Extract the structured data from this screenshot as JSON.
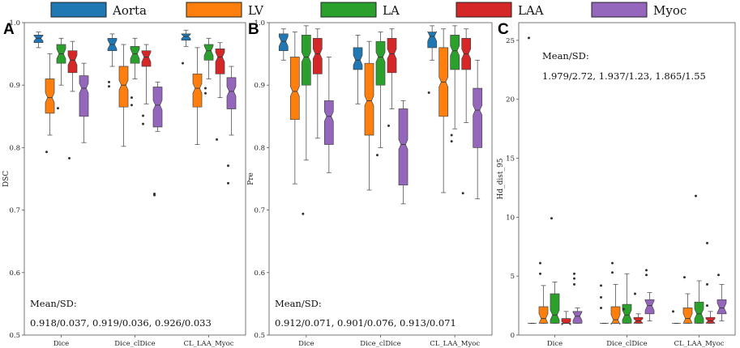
{
  "legend": [
    {
      "name": "Aorta",
      "color": "#1f77b4"
    },
    {
      "name": "LV",
      "color": "#ff7f0e"
    },
    {
      "name": "LA",
      "color": "#2ca02c"
    },
    {
      "name": "LAA",
      "color": "#d62728"
    },
    {
      "name": "Myoc",
      "color": "#9467bd"
    }
  ],
  "chart_data": [
    {
      "panel": "A",
      "type": "box",
      "ylabel": "DSC",
      "ylim": [
        0.5,
        1.0
      ],
      "yticks": [
        0.5,
        0.6,
        0.7,
        0.8,
        0.9,
        1.0
      ],
      "ytick_labels": [
        "0.5",
        "0.6",
        "0.7",
        "0.8",
        "0.9",
        "1.0"
      ],
      "categories": [
        "Dice",
        "Dice_clDice",
        "CL_LAA_Myoc"
      ],
      "annotation_title": "Mean/SD:",
      "annotation_text": "0.918/0.037, 0.919/0.036, 0.926/0.033",
      "groups": [
        [
          {
            "series": "Aorta",
            "q1": 0.968,
            "median": 0.975,
            "q3": 0.98,
            "wlo": 0.96,
            "whi": 0.985,
            "outliers": []
          },
          {
            "series": "LV",
            "q1": 0.855,
            "median": 0.88,
            "q3": 0.91,
            "wlo": 0.82,
            "whi": 0.95,
            "outliers": [
              0.793
            ]
          },
          {
            "series": "LA",
            "q1": 0.935,
            "median": 0.95,
            "q3": 0.965,
            "wlo": 0.9,
            "whi": 0.975,
            "outliers": [
              0.863
            ]
          },
          {
            "series": "LAA",
            "q1": 0.92,
            "median": 0.94,
            "q3": 0.955,
            "wlo": 0.89,
            "whi": 0.97,
            "outliers": [
              0.783
            ]
          },
          {
            "series": "Myoc",
            "q1": 0.85,
            "median": 0.895,
            "q3": 0.915,
            "wlo": 0.808,
            "whi": 0.935,
            "outliers": []
          }
        ],
        [
          {
            "series": "Aorta",
            "q1": 0.955,
            "median": 0.965,
            "q3": 0.975,
            "wlo": 0.93,
            "whi": 0.982,
            "outliers": [
              0.905,
              0.898
            ]
          },
          {
            "series": "LV",
            "q1": 0.865,
            "median": 0.9,
            "q3": 0.93,
            "wlo": 0.802,
            "whi": 0.965,
            "outliers": []
          },
          {
            "series": "LA",
            "q1": 0.935,
            "median": 0.95,
            "q3": 0.962,
            "wlo": 0.91,
            "whi": 0.975,
            "outliers": [
              0.88,
              0.868
            ]
          },
          {
            "series": "LAA",
            "q1": 0.93,
            "median": 0.945,
            "q3": 0.955,
            "wlo": 0.87,
            "whi": 0.965,
            "outliers": [
              0.851,
              0.838
            ]
          },
          {
            "series": "Myoc",
            "q1": 0.833,
            "median": 0.868,
            "q3": 0.897,
            "wlo": 0.826,
            "whi": 0.905,
            "outliers": [
              0.726,
              0.724
            ]
          }
        ],
        [
          {
            "series": "Aorta",
            "q1": 0.972,
            "median": 0.978,
            "q3": 0.982,
            "wlo": 0.962,
            "whi": 0.988,
            "outliers": [
              0.935
            ]
          },
          {
            "series": "LV",
            "q1": 0.865,
            "median": 0.895,
            "q3": 0.918,
            "wlo": 0.805,
            "whi": 0.96,
            "outliers": []
          },
          {
            "series": "LA",
            "q1": 0.94,
            "median": 0.955,
            "q3": 0.965,
            "wlo": 0.91,
            "whi": 0.975,
            "outliers": [
              0.895,
              0.887
            ]
          },
          {
            "series": "LAA",
            "q1": 0.918,
            "median": 0.945,
            "q3": 0.958,
            "wlo": 0.88,
            "whi": 0.968,
            "outliers": [
              0.813
            ]
          },
          {
            "series": "Myoc",
            "q1": 0.862,
            "median": 0.89,
            "q3": 0.912,
            "wlo": 0.82,
            "whi": 0.93,
            "outliers": [
              0.771,
              0.743
            ]
          }
        ]
      ]
    },
    {
      "panel": "B",
      "type": "box",
      "ylabel": "Pre",
      "ylim": [
        0.5,
        1.0
      ],
      "yticks": [
        0.5,
        0.6,
        0.7,
        0.8,
        0.9,
        1.0
      ],
      "ytick_labels": [
        "0.5",
        "0.6",
        "0.7",
        "0.8",
        "0.9",
        "1.0"
      ],
      "categories": [
        "Dice",
        "Dice_clDice",
        "CL_LAA_Myoc"
      ],
      "annotation_title": "Mean/SD:",
      "annotation_text": "0.912/0.071, 0.901/0.076, 0.913/0.071",
      "groups": [
        [
          {
            "series": "Aorta",
            "q1": 0.955,
            "median": 0.97,
            "q3": 0.982,
            "wlo": 0.94,
            "whi": 0.99,
            "outliers": []
          },
          {
            "series": "LV",
            "q1": 0.845,
            "median": 0.89,
            "q3": 0.945,
            "wlo": 0.742,
            "whi": 0.985,
            "outliers": []
          },
          {
            "series": "LA",
            "q1": 0.9,
            "median": 0.945,
            "q3": 0.98,
            "wlo": 0.78,
            "whi": 0.995,
            "outliers": [
              0.694
            ]
          },
          {
            "series": "LAA",
            "q1": 0.918,
            "median": 0.95,
            "q3": 0.975,
            "wlo": 0.815,
            "whi": 0.99,
            "outliers": []
          },
          {
            "series": "Myoc",
            "q1": 0.805,
            "median": 0.85,
            "q3": 0.875,
            "wlo": 0.76,
            "whi": 0.945,
            "outliers": []
          }
        ],
        [
          {
            "series": "Aorta",
            "q1": 0.925,
            "median": 0.94,
            "q3": 0.96,
            "wlo": 0.87,
            "whi": 0.98,
            "outliers": []
          },
          {
            "series": "LV",
            "q1": 0.82,
            "median": 0.875,
            "q3": 0.935,
            "wlo": 0.732,
            "whi": 0.97,
            "outliers": []
          },
          {
            "series": "LA",
            "q1": 0.9,
            "median": 0.945,
            "q3": 0.97,
            "wlo": 0.8,
            "whi": 0.985,
            "outliers": [
              0.788
            ]
          },
          {
            "series": "LAA",
            "q1": 0.92,
            "median": 0.95,
            "q3": 0.975,
            "wlo": 0.862,
            "whi": 0.99,
            "outliers": [
              0.835
            ]
          },
          {
            "series": "Myoc",
            "q1": 0.74,
            "median": 0.805,
            "q3": 0.862,
            "wlo": 0.71,
            "whi": 0.875,
            "outliers": []
          }
        ],
        [
          {
            "series": "Aorta",
            "q1": 0.96,
            "median": 0.978,
            "q3": 0.985,
            "wlo": 0.94,
            "whi": 0.995,
            "outliers": [
              0.888
            ]
          },
          {
            "series": "LV",
            "q1": 0.85,
            "median": 0.905,
            "q3": 0.96,
            "wlo": 0.728,
            "whi": 0.99,
            "outliers": []
          },
          {
            "series": "LA",
            "q1": 0.925,
            "median": 0.955,
            "q3": 0.98,
            "wlo": 0.83,
            "whi": 0.995,
            "outliers": [
              0.82,
              0.81
            ]
          },
          {
            "series": "LAA",
            "q1": 0.925,
            "median": 0.95,
            "q3": 0.975,
            "wlo": 0.84,
            "whi": 0.99,
            "outliers": [
              0.727
            ]
          },
          {
            "series": "Myoc",
            "q1": 0.8,
            "median": 0.86,
            "q3": 0.895,
            "wlo": 0.718,
            "whi": 0.94,
            "outliers": []
          }
        ]
      ]
    },
    {
      "panel": "C",
      "type": "box",
      "ylabel": "Hd_dist_95",
      "ylim": [
        0,
        26.5
      ],
      "yticks": [
        0,
        5,
        10,
        15,
        20,
        25
      ],
      "ytick_labels": [
        "0",
        "5",
        "10",
        "15",
        "20",
        "25"
      ],
      "categories": [
        "Dice",
        "Dice_clDice",
        "CL_LAA_Myoc"
      ],
      "annotation_title": "Mean/SD:",
      "annotation_text": "1.979/2.72, 1.937/1.23, 1.865/1.55",
      "groups": [
        [
          {
            "series": "Aorta",
            "q1": 1.0,
            "median": 1.0,
            "q3": 1.0,
            "wlo": 1.0,
            "whi": 1.0,
            "outliers": [
              25.2
            ]
          },
          {
            "series": "LV",
            "q1": 1.0,
            "median": 1.4,
            "q3": 2.4,
            "wlo": 1.0,
            "whi": 4.2,
            "outliers": [
              5.2,
              6.1
            ]
          },
          {
            "series": "LA",
            "q1": 1.0,
            "median": 1.7,
            "q3": 3.5,
            "wlo": 1.0,
            "whi": 4.5,
            "outliers": [
              9.9
            ]
          },
          {
            "series": "LAA",
            "q1": 1.0,
            "median": 1.0,
            "q3": 1.4,
            "wlo": 1.0,
            "whi": 2.0,
            "outliers": []
          },
          {
            "series": "Myoc",
            "q1": 1.0,
            "median": 1.6,
            "q3": 2.0,
            "wlo": 1.0,
            "whi": 2.3,
            "outliers": [
              4.3,
              4.8,
              5.2
            ]
          }
        ],
        [
          {
            "series": "Aorta",
            "q1": 1.0,
            "median": 1.0,
            "q3": 1.0,
            "wlo": 1.0,
            "whi": 1.0,
            "outliers": [
              2.3,
              3.2,
              4.2
            ]
          },
          {
            "series": "LV",
            "q1": 1.0,
            "median": 1.3,
            "q3": 2.4,
            "wlo": 1.0,
            "whi": 4.3,
            "outliers": [
              5.3,
              6.1
            ]
          },
          {
            "series": "LA",
            "q1": 1.0,
            "median": 1.7,
            "q3": 2.6,
            "wlo": 1.0,
            "whi": 5.2,
            "outliers": [
              2.2
            ]
          },
          {
            "series": "LAA",
            "q1": 1.0,
            "median": 1.2,
            "q3": 1.5,
            "wlo": 1.0,
            "whi": 1.8,
            "outliers": [
              3.5
            ]
          },
          {
            "series": "Myoc",
            "q1": 1.8,
            "median": 2.5,
            "q3": 3.0,
            "wlo": 1.2,
            "whi": 3.6,
            "outliers": [
              5.1,
              5.5
            ]
          }
        ],
        [
          {
            "series": "Aorta",
            "q1": 1.0,
            "median": 1.0,
            "q3": 1.0,
            "wlo": 1.0,
            "whi": 1.0,
            "outliers": [
              2.0
            ]
          },
          {
            "series": "LV",
            "q1": 1.0,
            "median": 1.4,
            "q3": 2.3,
            "wlo": 1.0,
            "whi": 3.5,
            "outliers": [
              4.9
            ]
          },
          {
            "series": "LA",
            "q1": 1.0,
            "median": 1.8,
            "q3": 2.8,
            "wlo": 1.0,
            "whi": 4.6,
            "outliers": [
              11.8
            ]
          },
          {
            "series": "LAA",
            "q1": 1.0,
            "median": 1.2,
            "q3": 1.5,
            "wlo": 1.0,
            "whi": 2.0,
            "outliers": [
              2.5,
              4.3,
              7.8
            ]
          },
          {
            "series": "Myoc",
            "q1": 1.8,
            "median": 2.3,
            "q3": 3.0,
            "wlo": 1.2,
            "whi": 4.3,
            "outliers": [
              5.1
            ]
          }
        ]
      ]
    }
  ]
}
